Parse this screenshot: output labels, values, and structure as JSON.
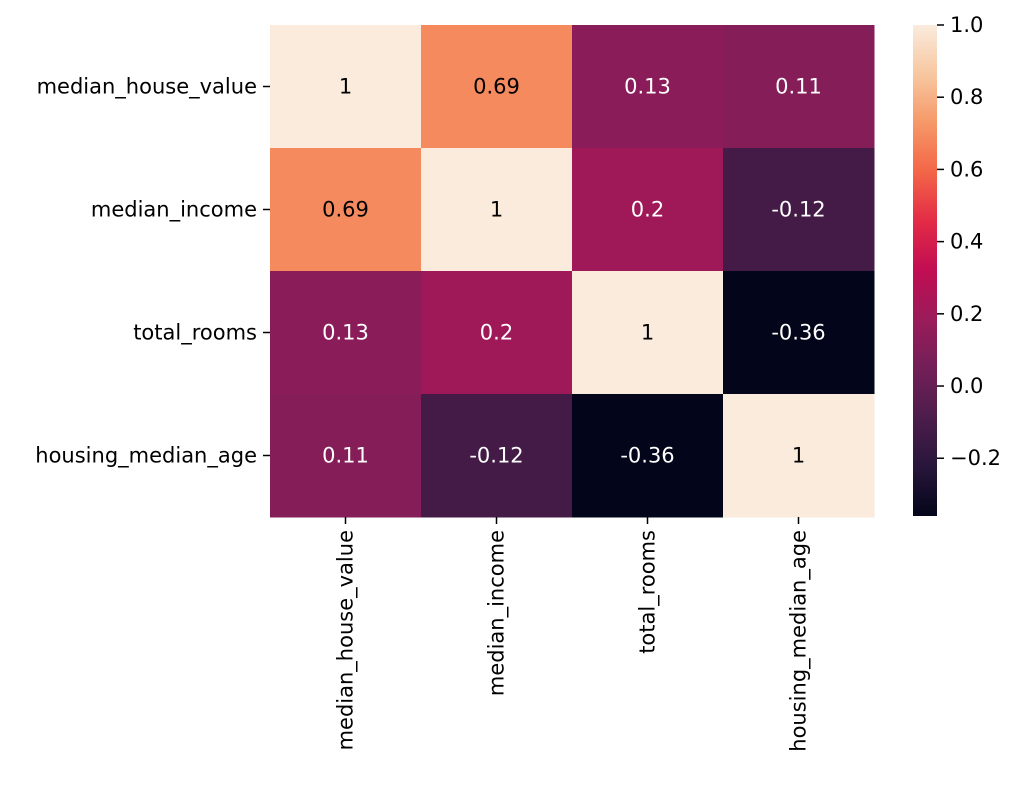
{
  "chart_data": {
    "type": "heatmap",
    "title": "",
    "xlabel": "",
    "ylabel": "",
    "rows": [
      "median_house_value",
      "median_income",
      "total_rooms",
      "housing_median_age"
    ],
    "columns": [
      "median_house_value",
      "median_income",
      "total_rooms",
      "housing_median_age"
    ],
    "values": [
      [
        1,
        0.69,
        0.13,
        0.11
      ],
      [
        0.69,
        1,
        0.2,
        -0.12
      ],
      [
        0.13,
        0.2,
        1,
        -0.36
      ],
      [
        0.11,
        -0.12,
        -0.36,
        1
      ]
    ],
    "cell_labels": [
      [
        "1",
        "0.69",
        "0.13",
        "0.11"
      ],
      [
        "0.69",
        "1",
        "0.2",
        "-0.12"
      ],
      [
        "0.13",
        "0.2",
        "1",
        "-0.36"
      ],
      [
        "0.11",
        "-0.12",
        "-0.36",
        "1"
      ]
    ],
    "colorbar": {
      "min": -0.36,
      "max": 1.0,
      "ticks": [
        1.0,
        0.8,
        0.6,
        0.4,
        0.2,
        0.0,
        -0.2
      ],
      "tick_labels": [
        "1.0",
        "0.8",
        "0.6",
        "0.4",
        "0.2",
        "0.0",
        "−0.2"
      ],
      "position": "right"
    },
    "colormap": "rocket",
    "annotation_colors": {
      "light": "#ffffff",
      "dark": "#000000"
    },
    "grid": false
  }
}
